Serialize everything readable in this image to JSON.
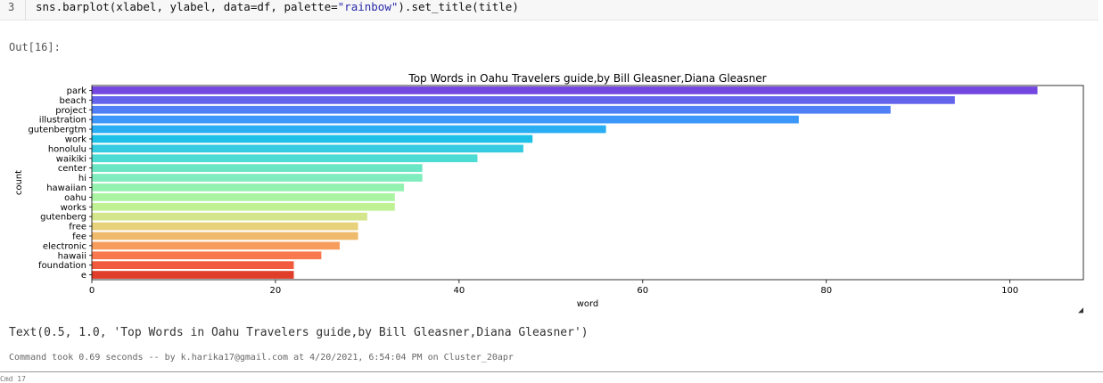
{
  "cell": {
    "line_number": "3",
    "code_prefix": "sns.barplot(xlabel, ylabel, data=df, palette=",
    "code_string": "\"rainbow\"",
    "code_suffix": ").set_title(title)",
    "out_label": "Out[16]:",
    "text_output": "Text(0.5, 1.0, 'Top Words in Oahu Travelers guide,by Bill Gleasner,Diana Gleasner')",
    "command_info": "Command took 0.69 seconds -- by k.harika17@gmail.com at 4/20/2021, 6:54:04 PM on Cluster_20apr",
    "next_cell_hint": "Cmd 17"
  },
  "chart_data": {
    "type": "bar",
    "orientation": "horizontal",
    "title": "Top Words in Oahu Travelers guide,by Bill Gleasner,Diana Gleasner",
    "xlabel": "word",
    "ylabel": "count",
    "xlim": [
      0,
      108
    ],
    "xticks": [
      0,
      20,
      40,
      60,
      80,
      100
    ],
    "categories": [
      "park",
      "beach",
      "project",
      "illustration",
      "gutenbergtm",
      "work",
      "honolulu",
      "waikiki",
      "center",
      "hi",
      "hawaiian",
      "oahu",
      "works",
      "gutenberg",
      "free",
      "fee",
      "electronic",
      "hawaii",
      "foundation",
      "e"
    ],
    "values": [
      103,
      94,
      87,
      77,
      56,
      48,
      47,
      42,
      36,
      36,
      34,
      33,
      33,
      30,
      29,
      29,
      27,
      25,
      22,
      22
    ],
    "colors": [
      "#7447e0",
      "#6463ec",
      "#517ff6",
      "#3d96f9",
      "#29aef4",
      "#1fc0e8",
      "#36cbe0",
      "#4ddcd3",
      "#6ae6c4",
      "#7fedbd",
      "#94f2b1",
      "#aaf4a4",
      "#c0f195",
      "#d4e68b",
      "#e7d17b",
      "#f0ba6c",
      "#f69d5e",
      "#f8794d",
      "#f15a3c",
      "#e03e2a"
    ]
  }
}
